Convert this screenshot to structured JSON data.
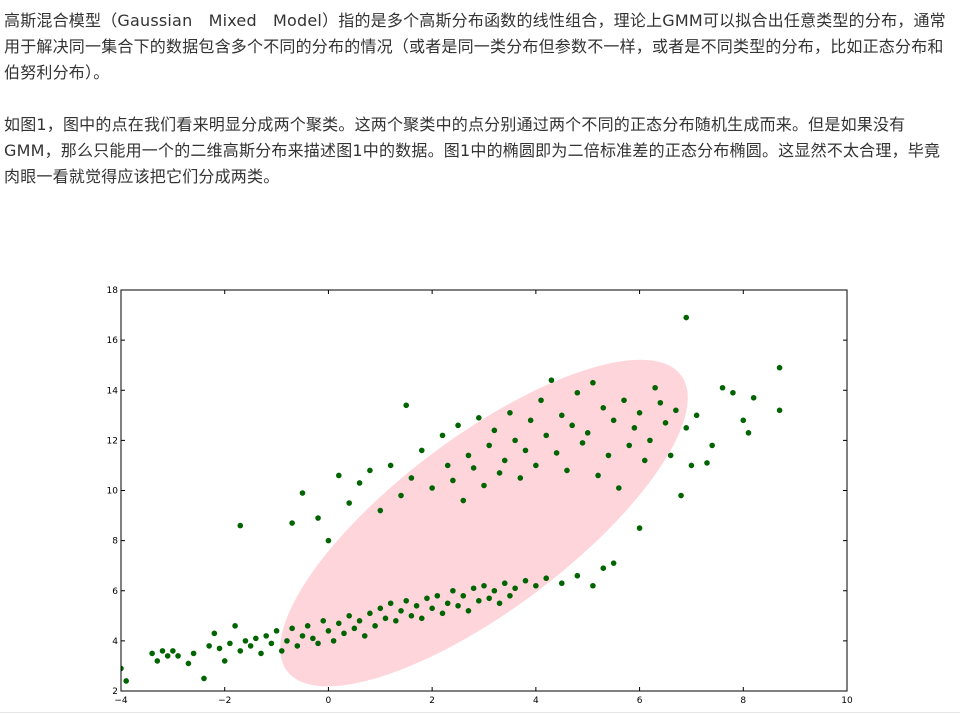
{
  "article": {
    "paragraph1": "高斯混合模型（Gaussian　Mixed　Model）指的是多个高斯分布函数的线性组合，理论上GMM可以拟合出任意类型的分布，通常用于解决同一集合下的数据包含多个不同的分布的情况（或者是同一类分布但参数不一样，或者是不同类型的分布，比如正态分布和伯努利分布）。",
    "paragraph2": "如图1，图中的点在我们看来明显分成两个聚类。这两个聚类中的点分别通过两个不同的正态分布随机生成而来。但是如果没有GMM，那么只能用一个的二维高斯分布来描述图1中的数据。图1中的椭圆即为二倍标准差的正态分布椭圆。这显然不太合理，毕竟肉眼一看就觉得应该把它们分成两类。"
  },
  "colors": {
    "points": "#006400",
    "ellipse": "#ffd0d8",
    "text": "#333333"
  },
  "chart_data": {
    "type": "scatter",
    "title": "",
    "xlabel": "",
    "ylabel": "",
    "xlim": [
      -4,
      10
    ],
    "ylim": [
      2,
      18
    ],
    "xticks": [
      "−4",
      "−2",
      "0",
      "2",
      "4",
      "6",
      "8",
      "10"
    ],
    "yticks": [
      "2",
      "4",
      "6",
      "8",
      "10",
      "12",
      "14",
      "16",
      "18"
    ],
    "grid": false,
    "ellipse": {
      "center": [
        3.0,
        8.7
      ],
      "points_on_boundary": [
        [
          -2.2,
          4.0
        ],
        [
          6.8,
          14.6
        ],
        [
          3.2,
          12.2
        ],
        [
          3.7,
          5.4
        ]
      ]
    },
    "series": [
      {
        "points": [
          [
            -4.0,
            2.9
          ],
          [
            -3.9,
            2.4
          ],
          [
            -3.4,
            3.5
          ],
          [
            -3.3,
            3.2
          ],
          [
            -3.2,
            3.6
          ],
          [
            -3.1,
            3.4
          ],
          [
            -3.0,
            3.6
          ],
          [
            -2.9,
            3.4
          ],
          [
            -2.7,
            3.1
          ],
          [
            -2.6,
            3.5
          ],
          [
            -2.4,
            2.5
          ],
          [
            -2.3,
            3.8
          ],
          [
            -2.2,
            4.3
          ],
          [
            -2.1,
            3.7
          ],
          [
            -2.0,
            3.2
          ],
          [
            -1.9,
            3.9
          ],
          [
            -1.8,
            4.6
          ],
          [
            -1.7,
            3.6
          ],
          [
            -1.6,
            4.0
          ],
          [
            -1.5,
            3.8
          ],
          [
            -1.4,
            4.1
          ],
          [
            -1.3,
            3.5
          ],
          [
            -1.2,
            4.2
          ],
          [
            -1.1,
            3.9
          ],
          [
            -1.0,
            4.4
          ],
          [
            -0.9,
            3.6
          ],
          [
            -0.8,
            4.0
          ],
          [
            -0.7,
            4.5
          ],
          [
            -0.6,
            3.8
          ],
          [
            -0.5,
            4.2
          ],
          [
            -0.4,
            4.6
          ],
          [
            -0.3,
            4.1
          ],
          [
            -0.2,
            3.9
          ],
          [
            -0.1,
            4.8
          ],
          [
            0.0,
            4.4
          ],
          [
            0.1,
            4.0
          ],
          [
            0.2,
            4.7
          ],
          [
            0.3,
            4.3
          ],
          [
            0.4,
            5.0
          ],
          [
            0.5,
            4.5
          ],
          [
            0.6,
            4.8
          ],
          [
            0.7,
            4.2
          ],
          [
            0.8,
            5.1
          ],
          [
            0.9,
            4.6
          ],
          [
            1.0,
            5.3
          ],
          [
            1.1,
            4.9
          ],
          [
            1.2,
            5.5
          ],
          [
            1.3,
            4.8
          ],
          [
            1.4,
            5.2
          ],
          [
            1.5,
            5.6
          ],
          [
            1.6,
            5.0
          ],
          [
            1.7,
            5.4
          ],
          [
            1.8,
            4.9
          ],
          [
            1.9,
            5.7
          ],
          [
            2.0,
            5.3
          ],
          [
            2.1,
            5.8
          ],
          [
            2.2,
            5.1
          ],
          [
            2.3,
            5.5
          ],
          [
            2.4,
            6.0
          ],
          [
            2.5,
            5.4
          ],
          [
            2.6,
            5.8
          ],
          [
            2.7,
            5.2
          ],
          [
            2.8,
            6.1
          ],
          [
            2.9,
            5.6
          ],
          [
            3.0,
            6.2
          ],
          [
            3.1,
            5.7
          ],
          [
            3.2,
            6.0
          ],
          [
            3.3,
            5.5
          ],
          [
            3.4,
            6.3
          ],
          [
            3.5,
            5.8
          ],
          [
            3.6,
            6.1
          ],
          [
            3.8,
            6.4
          ],
          [
            4.0,
            6.2
          ],
          [
            4.2,
            6.5
          ],
          [
            4.5,
            6.3
          ],
          [
            4.8,
            6.6
          ],
          [
            5.1,
            6.2
          ],
          [
            5.3,
            6.9
          ],
          [
            5.5,
            7.1
          ],
          [
            6.0,
            8.5
          ],
          [
            -1.7,
            8.6
          ],
          [
            -0.7,
            8.7
          ],
          [
            -0.5,
            9.9
          ],
          [
            -0.2,
            8.9
          ],
          [
            0.0,
            8.0
          ],
          [
            0.2,
            10.6
          ],
          [
            0.4,
            9.5
          ],
          [
            0.6,
            10.3
          ],
          [
            0.8,
            10.8
          ],
          [
            1.0,
            9.2
          ],
          [
            1.2,
            11.0
          ],
          [
            1.4,
            9.8
          ],
          [
            1.5,
            13.4
          ],
          [
            1.6,
            10.5
          ],
          [
            1.8,
            11.6
          ],
          [
            2.0,
            10.1
          ],
          [
            2.2,
            12.2
          ],
          [
            2.3,
            11.0
          ],
          [
            2.4,
            10.4
          ],
          [
            2.5,
            12.6
          ],
          [
            2.6,
            9.6
          ],
          [
            2.7,
            11.4
          ],
          [
            2.8,
            10.9
          ],
          [
            2.9,
            12.9
          ],
          [
            3.0,
            10.2
          ],
          [
            3.1,
            11.8
          ],
          [
            3.2,
            12.4
          ],
          [
            3.3,
            10.7
          ],
          [
            3.4,
            11.2
          ],
          [
            3.5,
            13.1
          ],
          [
            3.6,
            12.0
          ],
          [
            3.7,
            10.5
          ],
          [
            3.8,
            11.6
          ],
          [
            3.9,
            12.8
          ],
          [
            4.0,
            11.0
          ],
          [
            4.1,
            13.6
          ],
          [
            4.2,
            12.2
          ],
          [
            4.3,
            14.4
          ],
          [
            4.4,
            11.5
          ],
          [
            4.5,
            13.0
          ],
          [
            4.6,
            10.8
          ],
          [
            4.7,
            12.6
          ],
          [
            4.8,
            13.9
          ],
          [
            4.9,
            11.9
          ],
          [
            5.0,
            12.3
          ],
          [
            5.1,
            14.3
          ],
          [
            5.2,
            10.6
          ],
          [
            5.3,
            13.3
          ],
          [
            5.4,
            11.4
          ],
          [
            5.5,
            12.8
          ],
          [
            5.6,
            10.1
          ],
          [
            5.7,
            13.6
          ],
          [
            5.8,
            11.8
          ],
          [
            5.9,
            12.5
          ],
          [
            6.0,
            13.1
          ],
          [
            6.1,
            11.2
          ],
          [
            6.2,
            12.0
          ],
          [
            6.3,
            14.1
          ],
          [
            6.4,
            13.5
          ],
          [
            6.5,
            12.7
          ],
          [
            6.6,
            11.4
          ],
          [
            6.7,
            13.2
          ],
          [
            6.8,
            9.8
          ],
          [
            6.9,
            12.5
          ],
          [
            7.0,
            11.0
          ],
          [
            7.1,
            13.0
          ],
          [
            7.3,
            11.1
          ],
          [
            7.4,
            11.8
          ],
          [
            7.6,
            14.1
          ],
          [
            7.8,
            13.9
          ],
          [
            8.0,
            12.8
          ],
          [
            8.1,
            12.3
          ],
          [
            8.2,
            13.7
          ],
          [
            8.7,
            14.9
          ],
          [
            8.7,
            13.2
          ],
          [
            6.9,
            16.9
          ]
        ]
      }
    ]
  }
}
